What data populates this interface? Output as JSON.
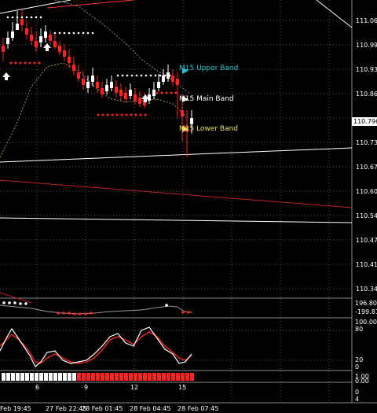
{
  "price_axis": {
    "labels": [
      "111.060",
      "110.995",
      "110.930",
      "110.865",
      "110.735",
      "110.670",
      "110.605",
      "110.540",
      "110.475",
      "110.410",
      "110.345"
    ],
    "current_price": "110.796"
  },
  "bands": {
    "upper": {
      "label": "M15 Upper Band",
      "color": "#22c5d8"
    },
    "main": {
      "label": "M15 Main Band",
      "color": "#ffffff"
    },
    "lower": {
      "label": "M15 Lower Band",
      "color": "#e6e05a"
    }
  },
  "cci_panel": {
    "upper": "196.807",
    "lower": "-199.812"
  },
  "stoch_panel": {
    "levels": [
      "100.00",
      "80",
      "20",
      "0"
    ]
  },
  "bar_panel": {
    "levels": [
      "1.00",
      "0.00"
    ]
  },
  "small_panel": {
    "levels": [
      "0",
      "4"
    ]
  },
  "time_axis": {
    "labels": [
      "Feb 19:45",
      "27 Feb 22:45",
      "28 Feb 01:45",
      "28 Feb 04:45",
      "28 Feb 07:45"
    ],
    "counter": [
      "6",
      "9",
      "12",
      "15"
    ]
  },
  "colors": {
    "bull": "#ffffff",
    "bear": "#ff2020",
    "grid": "#6a6a6a"
  }
}
